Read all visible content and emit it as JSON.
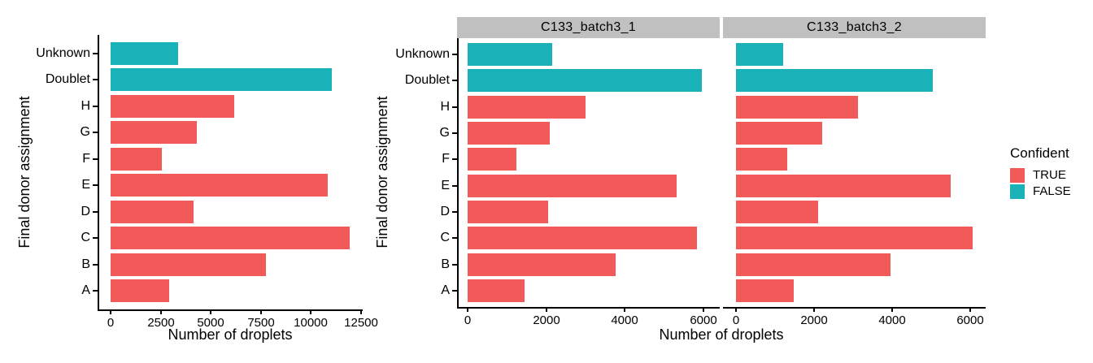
{
  "chart_data": {
    "type": "bar",
    "orientation": "horizontal",
    "title": "",
    "xlabel": "Number of droplets",
    "ylabel": "Final donor assignment",
    "categories_top_to_bottom": [
      "Unknown",
      "Doublet",
      "H",
      "G",
      "F",
      "E",
      "D",
      "C",
      "B",
      "A"
    ],
    "confident_top_to_bottom": [
      false,
      false,
      true,
      true,
      true,
      true,
      true,
      true,
      true,
      true
    ],
    "grid": false,
    "legend_position": "right",
    "legend": {
      "title": "Confident",
      "entries": [
        {
          "label": "TRUE",
          "color": "#F25A5A"
        },
        {
          "label": "FALSE",
          "color": "#18B2B8"
        }
      ]
    },
    "panels": [
      {
        "facet_label": "",
        "x_ticks": [
          0,
          2500,
          5000,
          7500,
          10000,
          12500
        ],
        "xlim": [
          0,
          12500
        ],
        "values": [
          3360,
          11050,
          6180,
          4300,
          2560,
          10850,
          4130,
          11950,
          7750,
          2930
        ]
      },
      {
        "facet_label": "C133_batch3_1",
        "x_ticks": [
          0,
          2000,
          4000,
          6000
        ],
        "xlim": [
          0,
          6000
        ],
        "values": [
          2150,
          5950,
          3000,
          2090,
          1240,
          5320,
          2050,
          5840,
          3770,
          1450
        ]
      },
      {
        "facet_label": "C133_batch3_2",
        "x_ticks": [
          0,
          2000,
          4000,
          6000
        ],
        "xlim": [
          0,
          6000
        ],
        "values": [
          1210,
          5040,
          3130,
          2210,
          1310,
          5500,
          2100,
          6060,
          3960,
          1480
        ]
      }
    ]
  },
  "colors": {
    "confident_true": "#F25A5A",
    "confident_false": "#18B2B8",
    "strip_background": "#C0C0C0",
    "axis_line": "#000000",
    "text": "#000000",
    "background": "#FFFFFF"
  }
}
